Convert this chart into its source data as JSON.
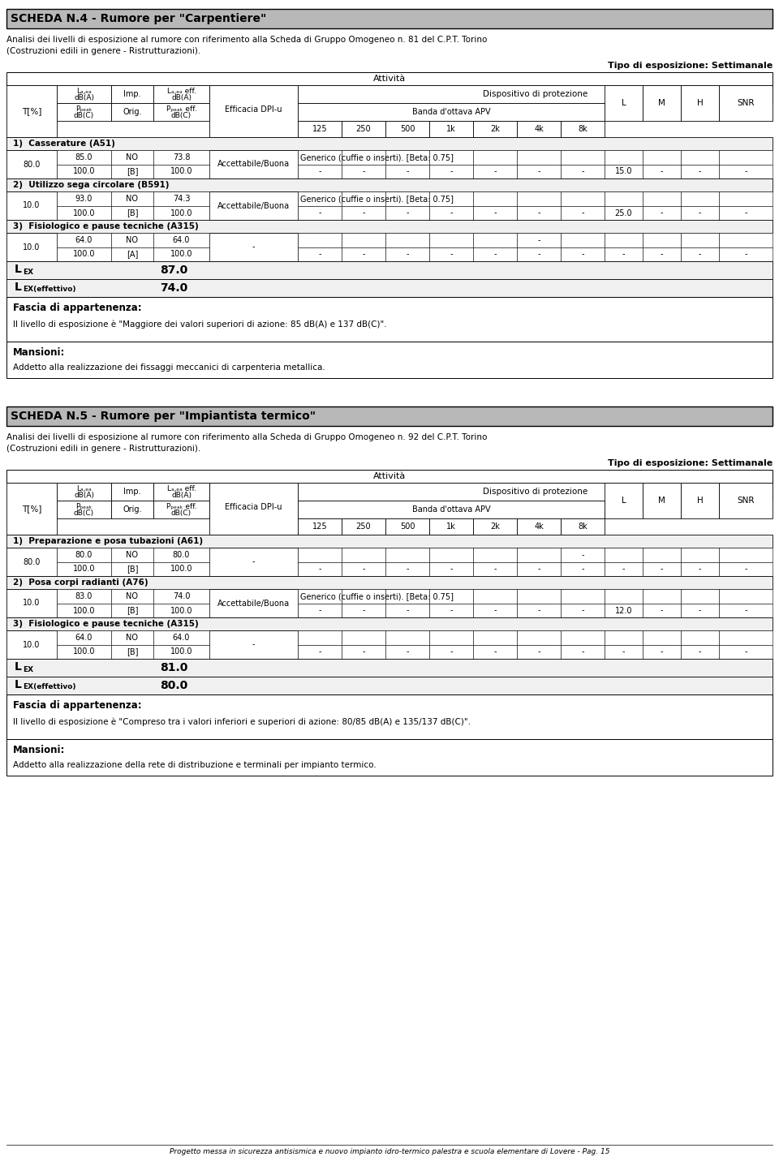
{
  "scheda1_title": "SCHEDA N.4 - Rumore per \"Carpentiere\"",
  "scheda1_subtitle1": "Analisi dei livelli di esposizione al rumore con riferimento alla Scheda di Gruppo Omogeneo n. 81 del C.P.T. Torino",
  "scheda1_subtitle2": "(Costruzioni edili in genere - Ristrutturazioni).",
  "scheda1_tipo": "Tipo di esposizione: Settimanale",
  "scheda1_activities": [
    {
      "num": "1)",
      "name": "Casserature (A51)",
      "rows": [
        {
          "T": "80.0",
          "laeq": "85.0",
          "imp": "NO",
          "laeff": "73.8",
          "efficacia": "Accettabile/Buona",
          "device": "Generico (cuffie o inserti). [Beta: 0.75]",
          "b125": "",
          "b250": "",
          "b500": "",
          "b1k": "",
          "b2k": "",
          "b4k": "",
          "b8k": "",
          "L": "",
          "M": "",
          "H": "",
          "SNR": ""
        },
        {
          "T": "",
          "laeq": "100.0",
          "imp": "[B]",
          "laeff": "100.0",
          "efficacia": "",
          "device": "",
          "b125": "-",
          "b250": "-",
          "b500": "-",
          "b1k": "-",
          "b2k": "-",
          "b4k": "-",
          "b8k": "-",
          "L": "15.0",
          "M": "-",
          "H": "-",
          "SNR": "-"
        }
      ]
    },
    {
      "num": "2)",
      "name": "Utilizzo sega circolare (B591)",
      "rows": [
        {
          "T": "10.0",
          "laeq": "93.0",
          "imp": "NO",
          "laeff": "74.3",
          "efficacia": "Accettabile/Buona",
          "device": "Generico (cuffie o inserti). [Beta: 0.75]",
          "b125": "",
          "b250": "",
          "b500": "",
          "b1k": "",
          "b2k": "",
          "b4k": "",
          "b8k": "",
          "L": "",
          "M": "",
          "H": "",
          "SNR": ""
        },
        {
          "T": "",
          "laeq": "100.0",
          "imp": "[B]",
          "laeff": "100.0",
          "efficacia": "",
          "device": "",
          "b125": "-",
          "b250": "-",
          "b500": "-",
          "b1k": "-",
          "b2k": "-",
          "b4k": "-",
          "b8k": "-",
          "L": "25.0",
          "M": "-",
          "H": "-",
          "SNR": "-"
        }
      ]
    },
    {
      "num": "3)",
      "name": "Fisiologico e pause tecniche (A315)",
      "rows": [
        {
          "T": "10.0",
          "laeq": "64.0",
          "imp": "NO",
          "laeff": "64.0",
          "efficacia": "-",
          "device": "",
          "b125": "",
          "b250": "",
          "b500": "",
          "b1k": "",
          "b2k": "",
          "b4k": "-",
          "b8k": "",
          "L": "",
          "M": "",
          "H": "",
          "SNR": ""
        },
        {
          "T": "",
          "laeq": "100.0",
          "imp": "[A]",
          "laeff": "100.0",
          "efficacia": "",
          "device": "",
          "b125": "-",
          "b250": "-",
          "b500": "-",
          "b1k": "-",
          "b2k": "-",
          "b4k": "-",
          "b8k": "-",
          "L": "-",
          "M": "-",
          "H": "-",
          "SNR": "-"
        }
      ]
    }
  ],
  "scheda1_lex": "87.0",
  "scheda1_lexeff": "74.0",
  "scheda1_fascia": "Fascia di appartenenza:",
  "scheda1_fascia_text": "Il livello di esposizione è \"Maggiore dei valori superiori di azione: 85 dB(A) e 137 dB(C)\".",
  "scheda1_mansioni": "Mansioni:",
  "scheda1_mansioni_text": "Addetto alla realizzazione dei fissaggi meccanici di carpenteria metallica.",
  "scheda2_title": "SCHEDA N.5 - Rumore per \"Impiantista termico\"",
  "scheda2_subtitle1": "Analisi dei livelli di esposizione al rumore con riferimento alla Scheda di Gruppo Omogeneo n. 92 del C.P.T. Torino",
  "scheda2_subtitle2": "(Costruzioni edili in genere - Ristrutturazioni).",
  "scheda2_tipo": "Tipo di esposizione: Settimanale",
  "scheda2_activities": [
    {
      "num": "1)",
      "name": "Preparazione e posa tubazioni (A61)",
      "rows": [
        {
          "T": "80.0",
          "laeq": "80.0",
          "imp": "NO",
          "laeff": "80.0",
          "efficacia": "-",
          "device": "",
          "b125": "",
          "b250": "",
          "b500": "",
          "b1k": "",
          "b2k": "",
          "b4k": "",
          "b8k": "-",
          "L": "",
          "M": "",
          "H": "",
          "SNR": ""
        },
        {
          "T": "",
          "laeq": "100.0",
          "imp": "[B]",
          "laeff": "100.0",
          "efficacia": "",
          "device": "",
          "b125": "-",
          "b250": "-",
          "b500": "-",
          "b1k": "-",
          "b2k": "-",
          "b4k": "-",
          "b8k": "-",
          "L": "-",
          "M": "-",
          "H": "-",
          "SNR": "-"
        }
      ]
    },
    {
      "num": "2)",
      "name": "Posa corpi radianti (A76)",
      "rows": [
        {
          "T": "10.0",
          "laeq": "83.0",
          "imp": "NO",
          "laeff": "74.0",
          "efficacia": "Accettabile/Buona",
          "device": "Generico (cuffie o inserti). [Beta: 0.75]",
          "b125": "",
          "b250": "",
          "b500": "",
          "b1k": "",
          "b2k": "",
          "b4k": "",
          "b8k": "",
          "L": "",
          "M": "",
          "H": "",
          "SNR": ""
        },
        {
          "T": "",
          "laeq": "100.0",
          "imp": "[B]",
          "laeff": "100.0",
          "efficacia": "",
          "device": "",
          "b125": "-",
          "b250": "-",
          "b500": "-",
          "b1k": "-",
          "b2k": "-",
          "b4k": "-",
          "b8k": "-",
          "L": "12.0",
          "M": "-",
          "H": "-",
          "SNR": "-"
        }
      ]
    },
    {
      "num": "3)",
      "name": "Fisiologico e pause tecniche (A315)",
      "rows": [
        {
          "T": "10.0",
          "laeq": "64.0",
          "imp": "NO",
          "laeff": "64.0",
          "efficacia": "-",
          "device": "",
          "b125": "",
          "b250": "",
          "b500": "",
          "b1k": "",
          "b2k": "",
          "b4k": "",
          "b8k": "",
          "L": "",
          "M": "",
          "H": "",
          "SNR": ""
        },
        {
          "T": "",
          "laeq": "100.0",
          "imp": "[B]",
          "laeff": "100.0",
          "efficacia": "",
          "device": "",
          "b125": "-",
          "b250": "-",
          "b500": "-",
          "b1k": "-",
          "b2k": "-",
          "b4k": "-",
          "b8k": "-",
          "L": "-",
          "M": "-",
          "H": "-",
          "SNR": "-"
        }
      ]
    }
  ],
  "scheda2_lex": "81.0",
  "scheda2_lexeff": "80.0",
  "scheda2_fascia": "Fascia di appartenenza:",
  "scheda2_fascia_text": "Il livello di esposizione è \"Compreso tra i valori inferiori e superiori di azione: 80/85 dB(A) e 135/137 dB(C)\".",
  "scheda2_mansioni": "Mansioni:",
  "scheda2_mansioni_text": "Addetto alla realizzazione della rete di distribuzione e terminali per impianto termico.",
  "footer": "Progetto messa in sicurezza antisismica e nuovo impianto idro-termico palestra e scuola elementare di Lovere - Pag. 15",
  "bg_white": "#ffffff",
  "bg_light_gray": "#f0f0f0",
  "title_bg": "#b8b8b8"
}
